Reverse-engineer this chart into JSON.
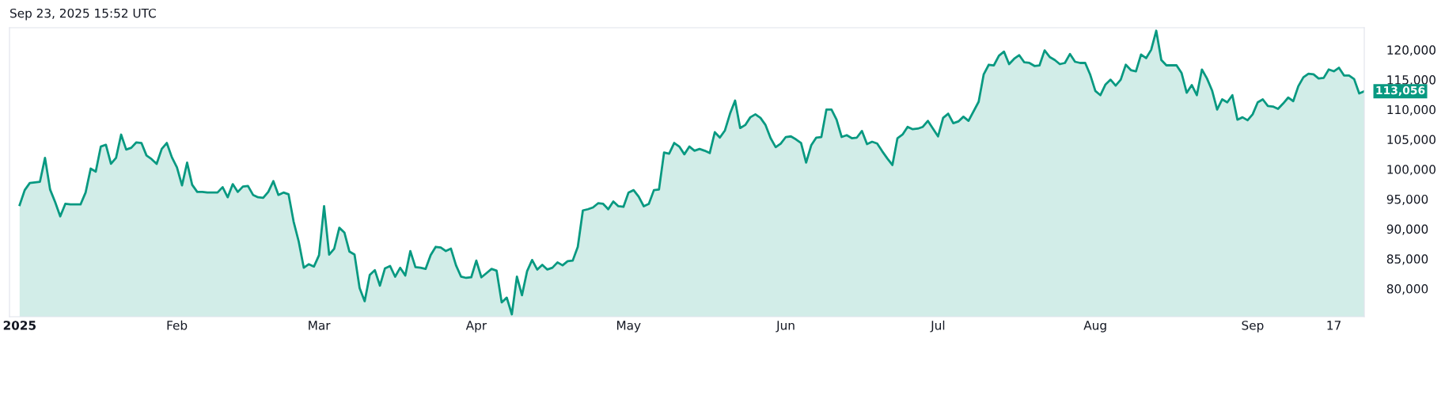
{
  "chart_data": {
    "type": "area",
    "annotations": [
      "Sep 23, 2025 15:52 UTC",
      "113,056"
    ],
    "x": [
      "2025-01-01",
      "2025-01-02",
      "2025-01-03",
      "2025-01-04",
      "2025-01-05",
      "2025-01-06",
      "2025-01-07",
      "2025-01-08",
      "2025-01-09",
      "2025-01-10",
      "2025-01-11",
      "2025-01-12",
      "2025-01-13",
      "2025-01-14",
      "2025-01-15",
      "2025-01-16",
      "2025-01-17",
      "2025-01-18",
      "2025-01-19",
      "2025-01-20",
      "2025-01-21",
      "2025-01-22",
      "2025-01-23",
      "2025-01-24",
      "2025-01-25",
      "2025-01-26",
      "2025-01-27",
      "2025-01-28",
      "2025-01-29",
      "2025-01-30",
      "2025-01-31",
      "2025-02-01",
      "2025-02-02",
      "2025-02-03",
      "2025-02-04",
      "2025-02-05",
      "2025-02-06",
      "2025-02-07",
      "2025-02-08",
      "2025-02-09",
      "2025-02-10",
      "2025-02-11",
      "2025-02-12",
      "2025-02-13",
      "2025-02-14",
      "2025-02-15",
      "2025-02-16",
      "2025-02-17",
      "2025-02-18",
      "2025-02-19",
      "2025-02-20",
      "2025-02-21",
      "2025-02-22",
      "2025-02-23",
      "2025-02-24",
      "2025-02-25",
      "2025-02-26",
      "2025-02-27",
      "2025-02-28",
      "2025-03-01",
      "2025-03-02",
      "2025-03-03",
      "2025-03-04",
      "2025-03-05",
      "2025-03-06",
      "2025-03-07",
      "2025-03-08",
      "2025-03-09",
      "2025-03-10",
      "2025-03-11",
      "2025-03-12",
      "2025-03-13",
      "2025-03-14",
      "2025-03-15",
      "2025-03-16",
      "2025-03-17",
      "2025-03-18",
      "2025-03-19",
      "2025-03-20",
      "2025-03-21",
      "2025-03-22",
      "2025-03-23",
      "2025-03-24",
      "2025-03-25",
      "2025-03-26",
      "2025-03-27",
      "2025-03-28",
      "2025-03-29",
      "2025-03-30",
      "2025-03-31",
      "2025-04-01",
      "2025-04-02",
      "2025-04-03",
      "2025-04-04",
      "2025-04-05",
      "2025-04-06",
      "2025-04-07",
      "2025-04-08",
      "2025-04-09",
      "2025-04-10",
      "2025-04-11",
      "2025-04-12",
      "2025-04-13",
      "2025-04-14",
      "2025-04-15",
      "2025-04-16",
      "2025-04-17",
      "2025-04-18",
      "2025-04-19",
      "2025-04-20",
      "2025-04-21",
      "2025-04-22",
      "2025-04-23",
      "2025-04-24",
      "2025-04-25",
      "2025-04-26",
      "2025-04-27",
      "2025-04-28",
      "2025-04-29",
      "2025-04-30",
      "2025-05-01",
      "2025-05-02",
      "2025-05-03",
      "2025-05-04",
      "2025-05-05",
      "2025-05-06",
      "2025-05-07",
      "2025-05-08",
      "2025-05-09",
      "2025-05-10",
      "2025-05-11",
      "2025-05-12",
      "2025-05-13",
      "2025-05-14",
      "2025-05-15",
      "2025-05-16",
      "2025-05-17",
      "2025-05-18",
      "2025-05-19",
      "2025-05-20",
      "2025-05-21",
      "2025-05-22",
      "2025-05-23",
      "2025-05-24",
      "2025-05-25",
      "2025-05-26",
      "2025-05-27",
      "2025-05-28",
      "2025-05-29",
      "2025-05-30",
      "2025-05-31",
      "2025-06-01",
      "2025-06-02",
      "2025-06-03",
      "2025-06-04",
      "2025-06-05",
      "2025-06-06",
      "2025-06-07",
      "2025-06-08",
      "2025-06-09",
      "2025-06-10",
      "2025-06-11",
      "2025-06-12",
      "2025-06-13",
      "2025-06-14",
      "2025-06-15",
      "2025-06-16",
      "2025-06-17",
      "2025-06-18",
      "2025-06-19",
      "2025-06-20",
      "2025-06-21",
      "2025-06-22",
      "2025-06-23",
      "2025-06-24",
      "2025-06-25",
      "2025-06-26",
      "2025-06-27",
      "2025-06-28",
      "2025-06-29",
      "2025-06-30",
      "2025-07-01",
      "2025-07-02",
      "2025-07-03",
      "2025-07-04",
      "2025-07-05",
      "2025-07-06",
      "2025-07-07",
      "2025-07-09",
      "2025-07-10",
      "2025-07-11",
      "2025-07-12",
      "2025-07-13",
      "2025-07-14",
      "2025-07-15",
      "2025-07-16",
      "2025-07-17",
      "2025-07-18",
      "2025-07-19",
      "2025-07-20",
      "2025-07-21",
      "2025-07-22",
      "2025-07-23",
      "2025-07-24",
      "2025-07-25",
      "2025-07-26",
      "2025-07-27",
      "2025-07-28",
      "2025-07-29",
      "2025-07-30",
      "2025-07-31",
      "2025-08-01",
      "2025-08-02",
      "2025-08-03",
      "2025-08-04",
      "2025-08-05",
      "2025-08-06",
      "2025-08-07",
      "2025-08-08",
      "2025-08-09",
      "2025-08-10",
      "2025-08-11",
      "2025-08-12",
      "2025-08-13",
      "2025-08-14",
      "2025-08-15",
      "2025-08-16",
      "2025-08-17",
      "2025-08-18",
      "2025-08-19",
      "2025-08-20",
      "2025-08-21",
      "2025-08-22",
      "2025-08-23",
      "2025-08-24",
      "2025-08-25",
      "2025-08-26",
      "2025-08-27",
      "2025-08-28",
      "2025-08-29",
      "2025-08-30",
      "2025-08-31",
      "2025-09-01",
      "2025-09-02",
      "2025-09-03",
      "2025-09-04",
      "2025-09-05",
      "2025-09-06",
      "2025-09-07",
      "2025-09-08",
      "2025-09-09",
      "2025-09-10",
      "2025-09-11",
      "2025-09-12",
      "2025-09-13",
      "2025-09-14",
      "2025-09-15",
      "2025-09-16",
      "2025-09-17",
      "2025-09-18",
      "2025-09-19",
      "2025-09-20",
      "2025-09-21",
      "2025-09-22",
      "2025-09-23"
    ],
    "series": [
      {
        "color": "#089981",
        "values": [
          94000,
          96500,
          97700,
          97800,
          97900,
          101900,
          96600,
          94500,
          92100,
          94200,
          94100,
          94100,
          94100,
          96100,
          100100,
          99600,
          103800,
          104100,
          100900,
          101900,
          105800,
          103300,
          103600,
          104500,
          104400,
          102300,
          101700,
          100900,
          103400,
          104400,
          102000,
          100300,
          97300,
          101100,
          97400,
          96200,
          96200,
          96100,
          96100,
          96100,
          97000,
          95300,
          97500,
          96200,
          97100,
          97200,
          95700,
          95300,
          95200,
          96200,
          98000,
          95700,
          96100,
          95800,
          91200,
          87900,
          83500,
          84100,
          83700,
          85600,
          93800,
          85700,
          86700,
          90200,
          89400,
          86200,
          85700,
          80100,
          77900,
          82300,
          83100,
          80500,
          83400,
          83800,
          82000,
          83500,
          82200,
          86300,
          83600,
          83500,
          83300,
          85600,
          87000,
          86900,
          86300,
          86700,
          83900,
          82000,
          81800,
          81900,
          84700,
          81900,
          82600,
          83300,
          83000,
          77700,
          78500,
          75700,
          82000,
          78900,
          82900,
          84800,
          83200,
          84000,
          83200,
          83500,
          84400,
          83900,
          84600,
          84700,
          87000,
          93100,
          93300,
          93600,
          94300,
          94200,
          93300,
          94600,
          93800,
          93700,
          96100,
          96500,
          95400,
          93800,
          94200,
          96500,
          96600,
          102800,
          102600,
          104400,
          103800,
          102500,
          103800,
          103100,
          103400,
          103100,
          102700,
          106200,
          105300,
          106500,
          109300,
          111500,
          106900,
          107400,
          108700,
          109200,
          108600,
          107400,
          105200,
          103700,
          104300,
          105400,
          105500,
          105000,
          104400,
          101100,
          104000,
          105300,
          105400,
          110000,
          110000,
          108300,
          105400,
          105700,
          105200,
          105300,
          106400,
          104200,
          104600,
          104300,
          103000,
          101800,
          100700,
          105200,
          105800,
          107100,
          106700,
          106800,
          107100,
          108100,
          106800,
          105500,
          108600,
          109300,
          107700,
          108000,
          108800,
          108100,
          111300,
          115900,
          117500,
          117400,
          119000,
          119700,
          117600,
          118500,
          119100,
          117900,
          117800,
          117300,
          117400,
          119900,
          118800,
          118300,
          117600,
          117800,
          119300,
          118000,
          117800,
          117800,
          115800,
          113100,
          112400,
          114200,
          115000,
          114000,
          115000,
          117500,
          116600,
          116400,
          119200,
          118600,
          120000,
          123200,
          118300,
          117400,
          117400,
          117400,
          116100,
          112800,
          114100,
          112400,
          116700,
          115200,
          113200,
          110000,
          111700,
          111200,
          112400,
          108300,
          108700,
          108200,
          109200,
          111200,
          111700,
          110600,
          110500,
          110100,
          111000,
          112000,
          111400,
          113900,
          115400,
          116000,
          115900,
          115200,
          115300,
          116700,
          116400,
          117000,
          115700,
          115700,
          115100,
          112700,
          113056
        ]
      }
    ],
    "xlim": [
      "2024-12-30",
      "2025-09-23"
    ],
    "xticks": [
      {
        "value": "2025-01-01",
        "label": "2025"
      },
      {
        "value": "2025-02-01",
        "label": "Feb"
      },
      {
        "value": "2025-03-01",
        "label": "Mar"
      },
      {
        "value": "2025-04-01",
        "label": "Apr"
      },
      {
        "value": "2025-05-01",
        "label": "May"
      },
      {
        "value": "2025-06-01",
        "label": "Jun"
      },
      {
        "value": "2025-07-01",
        "label": "Jul"
      },
      {
        "value": "2025-08-01",
        "label": "Aug"
      },
      {
        "value": "2025-09-01",
        "label": "Sep"
      },
      {
        "value": "2025-09-17",
        "label": "17"
      }
    ],
    "ylim": [
      75300,
      123700
    ],
    "yticks": [
      {
        "value": 80000,
        "label": "80,000"
      },
      {
        "value": 85000,
        "label": "85,000"
      },
      {
        "value": 90000,
        "label": "90,000"
      },
      {
        "value": 95000,
        "label": "95,000"
      },
      {
        "value": 100000,
        "label": "100,000"
      },
      {
        "value": 105000,
        "label": "105,000"
      },
      {
        "value": 110000,
        "label": "110,000"
      },
      {
        "value": 115000,
        "label": "115,000"
      },
      {
        "value": 120000,
        "label": "120,000"
      }
    ],
    "grid": false,
    "marker": "none",
    "line_style": "solid"
  }
}
